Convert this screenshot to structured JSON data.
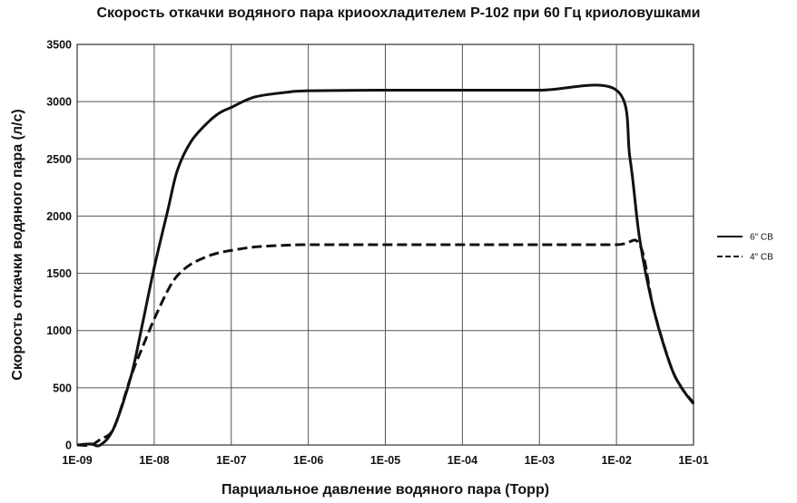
{
  "chart_data": {
    "type": "line",
    "title": "Скорость откачки водяного пара криоохладителем Р-102 при 60 Гц криоловушками",
    "xlabel": "Парциальное давление водяного пара (Торр)",
    "ylabel": "Скорость откачки водяного пара (л/с)",
    "x_scale": "log",
    "xlim": [
      1e-09,
      0.1
    ],
    "ylim": [
      0,
      3500
    ],
    "x_ticks": [
      1e-09,
      1e-08,
      1e-07,
      1e-06,
      1e-05,
      0.0001,
      0.001,
      0.01,
      0.1
    ],
    "x_tick_labels": [
      "1E-09",
      "1E-08",
      "1E-07",
      "1E-06",
      "1E-05",
      "1E-04",
      "1E-03",
      "1E-02",
      "1E-01"
    ],
    "y_ticks": [
      0,
      500,
      1000,
      1500,
      2000,
      2500,
      3000,
      3500
    ],
    "y_tick_labels": [
      "0",
      "500",
      "1000",
      "1500",
      "2000",
      "2500",
      "3000",
      "3500"
    ],
    "grid": true,
    "legend_position": "right",
    "series": [
      {
        "name": "6\" CB",
        "style": "solid",
        "color": "#111111",
        "x": [
          1e-09,
          1.5e-09,
          2e-09,
          3e-09,
          5e-09,
          7e-09,
          1e-08,
          1.5e-08,
          2e-08,
          3e-08,
          5e-08,
          7e-08,
          1e-07,
          2e-07,
          5e-07,
          1e-06,
          1e-05,
          0.0001,
          0.001,
          0.01,
          0.015,
          0.02,
          0.03,
          0.05,
          0.07,
          0.1
        ],
        "y": [
          0,
          10,
          0,
          150,
          600,
          1050,
          1550,
          2050,
          2400,
          2650,
          2820,
          2900,
          2950,
          3040,
          3080,
          3095,
          3100,
          3100,
          3100,
          3100,
          2500,
          1800,
          1200,
          700,
          500,
          360
        ]
      },
      {
        "name": "4\" CB",
        "style": "dashed",
        "color": "#111111",
        "x": [
          1e-09,
          1.5e-09,
          2e-09,
          3e-09,
          5e-09,
          7e-09,
          1e-08,
          1.5e-08,
          2e-08,
          3e-08,
          5e-08,
          7e-08,
          1e-07,
          2e-07,
          5e-07,
          1e-06,
          1e-05,
          0.0001,
          0.001,
          0.01,
          0.02,
          0.03,
          0.05,
          0.07,
          0.1
        ],
        "y": [
          0,
          0,
          50,
          150,
          600,
          850,
          1100,
          1350,
          1480,
          1580,
          1650,
          1680,
          1700,
          1730,
          1745,
          1750,
          1750,
          1750,
          1750,
          1750,
          1750,
          1200,
          700,
          500,
          370
        ]
      }
    ]
  }
}
